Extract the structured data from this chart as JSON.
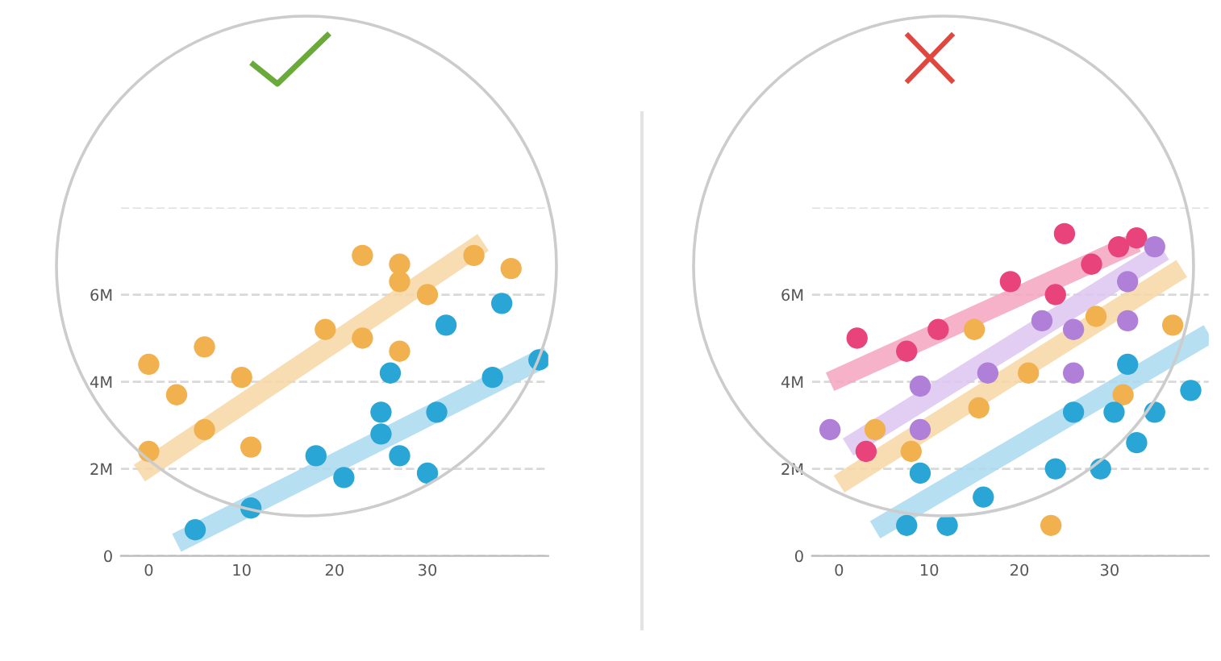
{
  "chart_data": [
    {
      "type": "scatter",
      "xlim": [
        -3,
        43
      ],
      "ylim": [
        0,
        8
      ],
      "xticks": [
        0,
        10,
        20,
        30
      ],
      "yticks": [
        0,
        {
          "value": 2,
          "label": "2M"
        },
        {
          "value": 4,
          "label": "4M"
        },
        {
          "value": 6,
          "label": "6M"
        },
        {
          "value": 8,
          "label": null
        }
      ],
      "grid": "y",
      "marker": "circle",
      "series": [
        {
          "type": "line",
          "marker": "none",
          "color": "#f8d7a4",
          "x": [
            -1,
            36
          ],
          "values": [
            1.9,
            7.2
          ]
        },
        {
          "type": "line",
          "marker": "none",
          "color": "#a9daf0",
          "x": [
            3,
            43
          ],
          "values": [
            0.3,
            4.6
          ]
        },
        {
          "color": "#f2b14f",
          "x": [
            0,
            3,
            6,
            10,
            0,
            6,
            11,
            19,
            23,
            23,
            27,
            27,
            27,
            30,
            35,
            39
          ],
          "values": [
            4.4,
            3.7,
            4.8,
            4.1,
            2.4,
            2.9,
            2.5,
            5.2,
            6.9,
            5.0,
            6.7,
            6.3,
            4.7,
            6.0,
            6.9,
            6.6
          ]
        },
        {
          "color": "#2aa6d6",
          "x": [
            5,
            11,
            18,
            21,
            26,
            25,
            25,
            27,
            30,
            31,
            32,
            37,
            38,
            42
          ],
          "values": [
            0.6,
            1.1,
            2.3,
            1.8,
            4.2,
            3.3,
            2.8,
            2.3,
            1.9,
            3.3,
            5.3,
            4.1,
            5.8,
            4.5
          ]
        }
      ]
    },
    {
      "type": "scatter",
      "xlim": [
        -3,
        41
      ],
      "ylim": [
        0,
        8
      ],
      "xticks": [
        0,
        10,
        20,
        30
      ],
      "yticks": [
        0,
        {
          "value": 2,
          "label": "2M"
        },
        {
          "value": 4,
          "label": "4M"
        },
        {
          "value": 6,
          "label": "6M"
        },
        {
          "value": 8,
          "label": null
        }
      ],
      "grid": "y",
      "marker": "circle",
      "series": [
        {
          "type": "line",
          "marker": "none",
          "color": "#f3a5bf",
          "x": [
            -1,
            33
          ],
          "values": [
            4.0,
            7.2
          ]
        },
        {
          "type": "line",
          "marker": "none",
          "color": "#dcc5f0",
          "x": [
            1,
            36
          ],
          "values": [
            2.5,
            7.0
          ]
        },
        {
          "type": "line",
          "marker": "none",
          "color": "#f8d7a4",
          "x": [
            0,
            38
          ],
          "values": [
            1.65,
            6.6
          ]
        },
        {
          "type": "line",
          "marker": "none",
          "color": "#a9daf0",
          "x": [
            4,
            41
          ],
          "values": [
            0.6,
            5.1
          ]
        },
        {
          "color": "#e8437a",
          "x": [
            2,
            3,
            7.5,
            11,
            19,
            24,
            25,
            28,
            31,
            33
          ],
          "values": [
            5.0,
            2.4,
            4.7,
            5.2,
            6.3,
            6.0,
            7.4,
            6.7,
            7.1,
            7.3
          ]
        },
        {
          "color": "#b07fd8",
          "x": [
            -1,
            9,
            9,
            16.5,
            22.5,
            26,
            26,
            32,
            32,
            35
          ],
          "values": [
            2.9,
            3.9,
            2.9,
            4.2,
            5.4,
            5.2,
            4.2,
            6.3,
            5.4,
            7.1
          ]
        },
        {
          "color": "#f2b14f",
          "x": [
            4,
            8,
            15,
            15.5,
            21,
            23.5,
            28.5,
            31.5,
            37
          ],
          "values": [
            2.9,
            2.4,
            5.2,
            3.4,
            4.2,
            0.7,
            5.5,
            3.7,
            5.3
          ]
        },
        {
          "color": "#2aa6d6",
          "x": [
            7.5,
            9,
            12,
            16,
            24,
            29,
            26,
            30.5,
            32,
            33,
            35,
            39
          ],
          "values": [
            0.7,
            1.9,
            0.7,
            1.35,
            2.0,
            2.0,
            3.3,
            3.3,
            4.4,
            2.6,
            3.3,
            3.8
          ]
        }
      ]
    }
  ]
}
